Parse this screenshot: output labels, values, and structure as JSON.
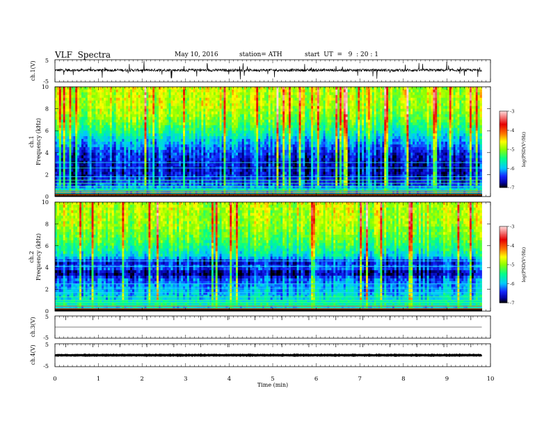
{
  "header": {
    "title": "VLF  Spectra",
    "date": "May 10, 2016",
    "station": "station= ATH",
    "start": "start  UT  =   9  : 20 : 1"
  },
  "chart_data": [
    {
      "type": "line",
      "name": "ch1-waveform",
      "ylabel": "ch.1(V)",
      "yticks": [
        "5",
        "-5"
      ],
      "ylim": [
        -5,
        5
      ],
      "xlim": [
        0,
        10
      ],
      "data_span_min": [
        0,
        9.8
      ],
      "baseline": 0.3,
      "noise_amplitude": 1.2,
      "color": "#000000"
    },
    {
      "type": "heatmap",
      "name": "ch1-spectrogram",
      "ylabel_lines": [
        "ch.1",
        "Frequency  (kHz)"
      ],
      "yticks": [
        "0",
        "2",
        "4",
        "6",
        "8",
        "10"
      ],
      "ylim": [
        0,
        10
      ],
      "xlim": [
        0,
        10
      ],
      "data_span_min": [
        0,
        9.8
      ],
      "colorbar": {
        "label": "log(PSD(V²/Hz)",
        "ticks": [
          "-3",
          "-4",
          "-5",
          "-6",
          "-7"
        ],
        "range": [
          -7,
          -3
        ]
      },
      "profile_khz": [
        {
          "f": 0.0,
          "v": -7.0
        },
        {
          "f": 0.5,
          "v": -5.6
        },
        {
          "f": 1.0,
          "v": -6.3
        },
        {
          "f": 2.0,
          "v": -6.6
        },
        {
          "f": 3.0,
          "v": -6.6
        },
        {
          "f": 4.0,
          "v": -6.4
        },
        {
          "f": 5.0,
          "v": -6.0
        },
        {
          "f": 6.0,
          "v": -5.5
        },
        {
          "f": 7.0,
          "v": -5.1
        },
        {
          "f": 8.0,
          "v": -4.9
        },
        {
          "f": 9.0,
          "v": -4.8
        },
        {
          "f": 10.0,
          "v": -4.8
        }
      ],
      "line_khz": [
        0.15,
        0.35,
        0.5,
        0.9,
        1.2,
        1.5,
        1.8,
        2.6,
        3.1
      ]
    },
    {
      "type": "heatmap",
      "name": "ch2-spectrogram",
      "ylabel_lines": [
        "ch.2",
        "Frequency  (kHz)"
      ],
      "yticks": [
        "0",
        "2",
        "4",
        "6",
        "8",
        "10"
      ],
      "ylim": [
        0,
        10
      ],
      "xlim": [
        0,
        10
      ],
      "data_span_min": [
        0,
        9.8
      ],
      "colorbar": {
        "label": "log(PSD(V²/Hz)",
        "ticks": [
          "-3",
          "-4",
          "-5",
          "-6",
          "-7"
        ],
        "range": [
          -7,
          -3
        ]
      },
      "profile_khz": [
        {
          "f": 0.0,
          "v": -7.0
        },
        {
          "f": 0.5,
          "v": -5.5
        },
        {
          "f": 1.0,
          "v": -5.8
        },
        {
          "f": 2.0,
          "v": -6.0
        },
        {
          "f": 3.0,
          "v": -6.3
        },
        {
          "f": 3.5,
          "v": -6.8
        },
        {
          "f": 4.0,
          "v": -6.2
        },
        {
          "f": 4.5,
          "v": -6.6
        },
        {
          "f": 5.0,
          "v": -5.8
        },
        {
          "f": 6.0,
          "v": -5.4
        },
        {
          "f": 7.0,
          "v": -5.1
        },
        {
          "f": 8.0,
          "v": -4.9
        },
        {
          "f": 10.0,
          "v": -4.8
        }
      ],
      "line_khz": [
        0.2,
        0.45,
        0.8,
        1.0,
        1.3,
        1.7,
        2.1,
        2.5,
        4.1,
        4.6
      ]
    },
    {
      "type": "line",
      "name": "ch3-waveform",
      "ylabel": "ch.3(V)",
      "yticks": [
        "5",
        "-5"
      ],
      "ylim": [
        -5,
        5
      ],
      "xlim": [
        0,
        10
      ],
      "data_span_min": [
        0,
        9.8
      ],
      "baseline": 0.0,
      "noise_amplitude": 0.02,
      "color": "#000000"
    },
    {
      "type": "line",
      "name": "ch4-waveform",
      "ylabel": "ch.4(V)",
      "yticks": [
        "5",
        "-5"
      ],
      "ylim": [
        -5,
        5
      ],
      "xlim": [
        0,
        10
      ],
      "data_span_min": [
        0,
        9.8
      ],
      "baseline": 0.0,
      "noise_amplitude": 0.18,
      "color": "#000000"
    }
  ],
  "xaxis": {
    "label": "Time  (min)",
    "ticks": [
      "0",
      "1",
      "2",
      "3",
      "4",
      "5",
      "6",
      "7",
      "8",
      "9",
      "10"
    ],
    "range": [
      0,
      10
    ]
  }
}
